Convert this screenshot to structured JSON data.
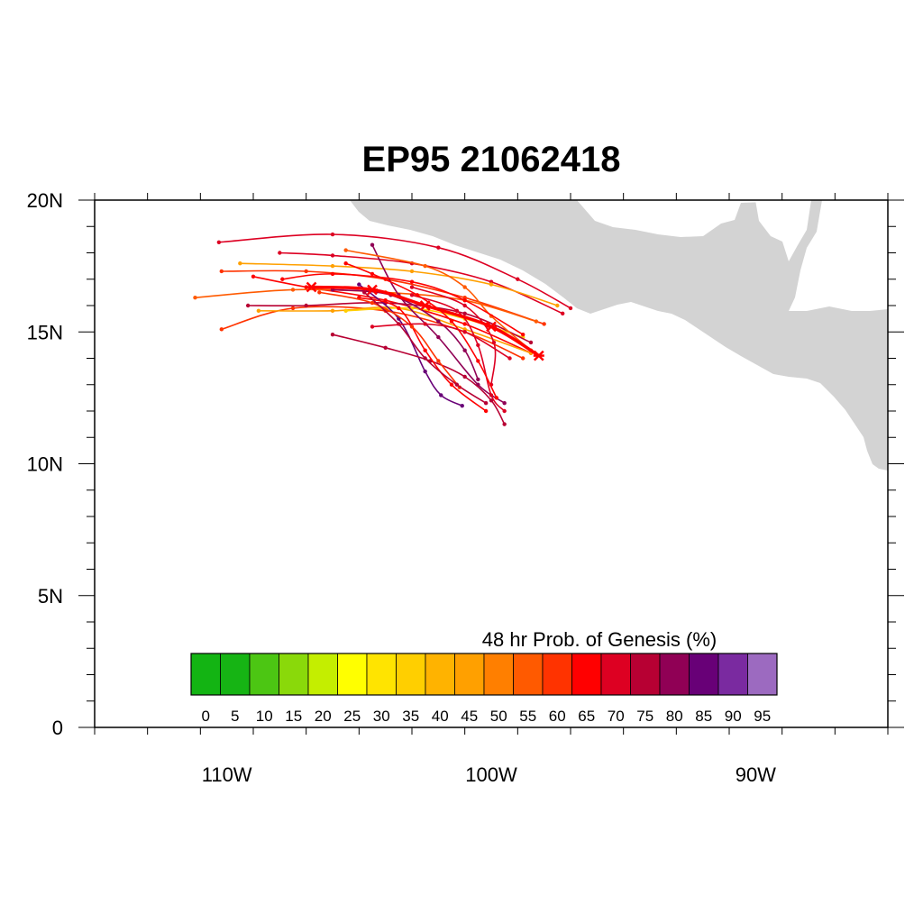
{
  "title": "EP95 21062418",
  "map": {
    "lon_range": [
      -115,
      -85
    ],
    "lat_range": [
      0,
      20
    ],
    "land_color": "#d3d3d3",
    "x_ticks": [
      {
        "lon": -110,
        "label": "110W"
      },
      {
        "lon": -100,
        "label": "100W"
      },
      {
        "lon": -90,
        "label": "90W"
      }
    ],
    "y_ticks": [
      {
        "lat": 20,
        "label": "20N"
      },
      {
        "lat": 15,
        "label": "15N"
      },
      {
        "lat": 10,
        "label": "10N"
      },
      {
        "lat": 5,
        "label": "5N"
      },
      {
        "lat": 0,
        "label": "0"
      }
    ]
  },
  "colorbar": {
    "title": "48 hr Prob. of Genesis (%)",
    "labels": [
      "0",
      "5",
      "10",
      "15",
      "20",
      "25",
      "30",
      "35",
      "40",
      "45",
      "50",
      "55",
      "60",
      "65",
      "70",
      "75",
      "80",
      "85",
      "90",
      "95"
    ],
    "colors": [
      "#13b413",
      "#16b414",
      "#4cc613",
      "#8ad90a",
      "#c4ee00",
      "#ffff00",
      "#ffe400",
      "#ffcf00",
      "#ffb300",
      "#ffa000",
      "#ff7f00",
      "#ff5a00",
      "#ff3300",
      "#ff0000",
      "#dd0022",
      "#b70033",
      "#900055",
      "#680077",
      "#7a2aa0",
      "#9c6ac0"
    ]
  },
  "chart_data": {
    "type": "track",
    "mean_track": [
      {
        "lon": -98.2,
        "lat": 14.1
      },
      {
        "lon": -100.0,
        "lat": 15.2
      },
      {
        "lon": -102.5,
        "lat": 16.0
      },
      {
        "lon": -104.5,
        "lat": 16.6
      },
      {
        "lon": -106.8,
        "lat": 16.7
      }
    ],
    "ensemble_tracks": [
      {
        "color": "#ff0000",
        "points": [
          {
            "lon": -98.5,
            "lat": 14.2
          },
          {
            "lon": -101,
            "lat": 15.3
          },
          {
            "lon": -104,
            "lat": 16.2
          },
          {
            "lon": -107,
            "lat": 16.7
          },
          {
            "lon": -109,
            "lat": 17.1
          }
        ]
      },
      {
        "color": "#dd0022",
        "points": [
          {
            "lon": -97.3,
            "lat": 15.7
          },
          {
            "lon": -100,
            "lat": 16.9
          },
          {
            "lon": -103,
            "lat": 17.6
          },
          {
            "lon": -106,
            "lat": 17.9
          },
          {
            "lon": -108,
            "lat": 18.0
          }
        ]
      },
      {
        "color": "#dd0022",
        "points": [
          {
            "lon": -97,
            "lat": 15.9
          },
          {
            "lon": -99,
            "lat": 17.0
          },
          {
            "lon": -102,
            "lat": 18.2
          },
          {
            "lon": -106,
            "lat": 18.7
          },
          {
            "lon": -110.3,
            "lat": 18.4
          }
        ]
      },
      {
        "color": "#ffa000",
        "points": [
          {
            "lon": -97.5,
            "lat": 16.0
          },
          {
            "lon": -100,
            "lat": 16.8
          },
          {
            "lon": -103,
            "lat": 17.3
          },
          {
            "lon": -106,
            "lat": 17.5
          },
          {
            "lon": -109.5,
            "lat": 17.6
          }
        ]
      },
      {
        "color": "#ff3300",
        "points": [
          {
            "lon": -98,
            "lat": 15.3
          },
          {
            "lon": -101,
            "lat": 16.3
          },
          {
            "lon": -104,
            "lat": 17.0
          },
          {
            "lon": -107,
            "lat": 17.3
          },
          {
            "lon": -110.2,
            "lat": 17.3
          }
        ]
      },
      {
        "color": "#ff5a00",
        "points": [
          {
            "lon": -98.3,
            "lat": 15.4
          },
          {
            "lon": -101,
            "lat": 16.2
          },
          {
            "lon": -104,
            "lat": 16.5
          },
          {
            "lon": -107.5,
            "lat": 16.6
          },
          {
            "lon": -111.2,
            "lat": 16.3
          }
        ]
      },
      {
        "color": "#ff3300",
        "points": [
          {
            "lon": -98.8,
            "lat": 14.0
          },
          {
            "lon": -101,
            "lat": 15.0
          },
          {
            "lon": -104,
            "lat": 15.8
          },
          {
            "lon": -107.5,
            "lat": 15.9
          },
          {
            "lon": -110.2,
            "lat": 15.1
          }
        ]
      },
      {
        "color": "#ffa000",
        "points": [
          {
            "lon": -98.5,
            "lat": 14.2
          },
          {
            "lon": -101,
            "lat": 15.1
          },
          {
            "lon": -103.5,
            "lat": 15.9
          },
          {
            "lon": -106,
            "lat": 15.8
          },
          {
            "lon": -108.8,
            "lat": 15.8
          }
        ]
      },
      {
        "color": "#ffcf00",
        "points": [
          {
            "lon": -98.8,
            "lat": 14.8
          },
          {
            "lon": -101,
            "lat": 15.5
          },
          {
            "lon": -103,
            "lat": 15.9
          },
          {
            "lon": -105.5,
            "lat": 15.8
          }
        ]
      },
      {
        "color": "#b70033",
        "points": [
          {
            "lon": -98.5,
            "lat": 14.6
          },
          {
            "lon": -101,
            "lat": 15.7
          },
          {
            "lon": -104,
            "lat": 16.1
          },
          {
            "lon": -107,
            "lat": 16.0
          },
          {
            "lon": -109.2,
            "lat": 16.0
          }
        ]
      },
      {
        "color": "#900055",
        "points": [
          {
            "lon": -99.5,
            "lat": 12.3
          },
          {
            "lon": -100.5,
            "lat": 13.0
          },
          {
            "lon": -102,
            "lat": 14.8
          },
          {
            "lon": -103.5,
            "lat": 16.4
          },
          {
            "lon": -104.5,
            "lat": 18.3
          }
        ]
      },
      {
        "color": "#680077",
        "points": [
          {
            "lon": -101.1,
            "lat": 12.2
          },
          {
            "lon": -101.9,
            "lat": 12.6
          },
          {
            "lon": -102.5,
            "lat": 13.5
          },
          {
            "lon": -103.5,
            "lat": 15.5
          },
          {
            "lon": -105,
            "lat": 16.8
          }
        ]
      },
      {
        "color": "#b70033",
        "points": [
          {
            "lon": -99.5,
            "lat": 11.5
          },
          {
            "lon": -100,
            "lat": 12.4
          },
          {
            "lon": -101,
            "lat": 13.3
          },
          {
            "lon": -102.3,
            "lat": 13.9
          },
          {
            "lon": -104,
            "lat": 14.4
          },
          {
            "lon": -106,
            "lat": 14.9
          }
        ]
      },
      {
        "color": "#dd0022",
        "points": [
          {
            "lon": -99.5,
            "lat": 12.0
          },
          {
            "lon": -100,
            "lat": 12.6
          },
          {
            "lon": -100.5,
            "lat": 14.5
          },
          {
            "lon": -101.3,
            "lat": 15.8
          },
          {
            "lon": -103,
            "lat": 16.4
          }
        ]
      },
      {
        "color": "#ff0000",
        "points": [
          {
            "lon": -100.2,
            "lat": 12.0
          },
          {
            "lon": -101.5,
            "lat": 13.0
          },
          {
            "lon": -102.5,
            "lat": 14.3
          },
          {
            "lon": -103.5,
            "lat": 15.9
          },
          {
            "lon": -105,
            "lat": 16.3
          }
        ]
      },
      {
        "color": "#900055",
        "points": [
          {
            "lon": -100.5,
            "lat": 13.2
          },
          {
            "lon": -101,
            "lat": 14.3
          },
          {
            "lon": -102,
            "lat": 15.4
          },
          {
            "lon": -103.8,
            "lat": 16.4
          },
          {
            "lon": -106,
            "lat": 16.6
          }
        ]
      },
      {
        "color": "#dd0022",
        "points": [
          {
            "lon": -100,
            "lat": 13.0
          },
          {
            "lon": -99.9,
            "lat": 14.6
          },
          {
            "lon": -101,
            "lat": 16.0
          },
          {
            "lon": -103,
            "lat": 16.7
          }
        ]
      },
      {
        "color": "#ff3300",
        "points": [
          {
            "lon": -101.2,
            "lat": 12.9
          },
          {
            "lon": -102,
            "lat": 13.9
          },
          {
            "lon": -103,
            "lat": 15.2
          },
          {
            "lon": -104.5,
            "lat": 16.1
          },
          {
            "lon": -106.5,
            "lat": 16.5
          }
        ]
      },
      {
        "color": "#ff0000",
        "points": [
          {
            "lon": -99.8,
            "lat": 12.5
          },
          {
            "lon": -100.5,
            "lat": 13.9
          },
          {
            "lon": -101.5,
            "lat": 15.4
          },
          {
            "lon": -102.8,
            "lat": 16.4
          },
          {
            "lon": -104.5,
            "lat": 17.2
          },
          {
            "lon": -105.5,
            "lat": 17.6
          }
        ]
      },
      {
        "color": "#b70033",
        "points": [
          {
            "lon": -100.2,
            "lat": 12.3
          },
          {
            "lon": -101.3,
            "lat": 13.0
          },
          {
            "lon": -102.5,
            "lat": 14.0
          },
          {
            "lon": -103.5,
            "lat": 15.3
          },
          {
            "lon": -104.8,
            "lat": 16.5
          }
        ]
      },
      {
        "color": "#ff5a00",
        "points": [
          {
            "lon": -98.5,
            "lat": 14.3
          },
          {
            "lon": -100,
            "lat": 15.6
          },
          {
            "lon": -101,
            "lat": 16.7
          },
          {
            "lon": -102.5,
            "lat": 17.5
          },
          {
            "lon": -105.5,
            "lat": 18.1
          }
        ]
      },
      {
        "color": "#ff0000",
        "points": [
          {
            "lon": -98.8,
            "lat": 14.9
          },
          {
            "lon": -101,
            "lat": 16.2
          },
          {
            "lon": -103,
            "lat": 16.9
          },
          {
            "lon": -106,
            "lat": 17.2
          },
          {
            "lon": -107.9,
            "lat": 17.0
          }
        ]
      },
      {
        "color": "#dd0022",
        "points": [
          {
            "lon": -99.3,
            "lat": 14.0
          },
          {
            "lon": -101,
            "lat": 15.0
          },
          {
            "lon": -102.5,
            "lat": 15.3
          },
          {
            "lon": -104.5,
            "lat": 15.2
          }
        ]
      }
    ]
  }
}
